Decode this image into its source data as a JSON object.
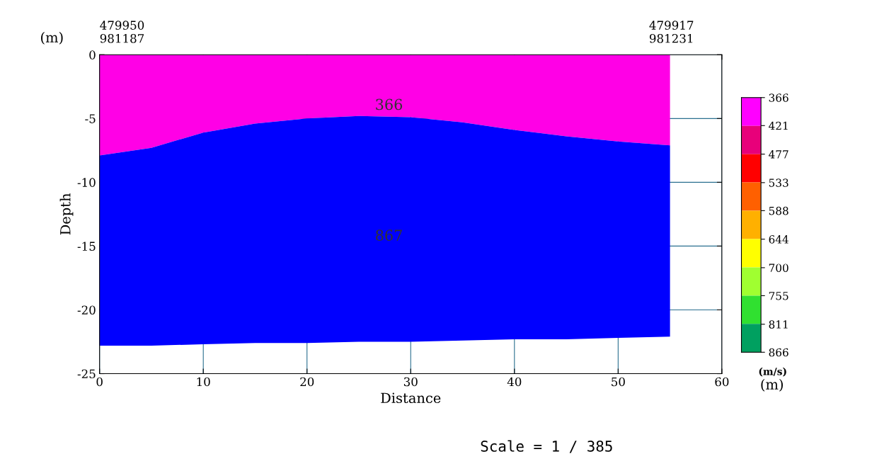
{
  "chart_data": {
    "type": "area",
    "stacked": true,
    "xlabel": "Distance",
    "ylabel": "Depth",
    "clabel": "(m/s)",
    "x": [
      0,
      5,
      10,
      15,
      20,
      25,
      30,
      35,
      40,
      45,
      50,
      55
    ],
    "series": [
      {
        "color": "#ff00e6",
        "values": [
          -7.9,
          -7.3,
          -6.1,
          -5.4,
          -5.0,
          -4.8,
          -4.9,
          -5.3,
          -5.9,
          -6.4,
          -6.8,
          -7.1
        ]
      },
      {
        "color": "#0000ff",
        "values": [
          -14.9,
          -15.5,
          -16.6,
          -17.2,
          -17.6,
          -17.7,
          -17.6,
          -17.1,
          -16.4,
          -15.9,
          -15.4,
          -15.0
        ]
      }
    ],
    "xlim": [
      0,
      60
    ],
    "xticks": [
      0,
      10,
      20,
      30,
      40,
      50,
      60
    ],
    "ylim": [
      -25,
      0
    ],
    "yticks": [
      -25,
      -20,
      -15,
      -10,
      -5,
      0
    ],
    "grid": true,
    "clim": [
      366,
      866
    ],
    "cticks": [
      366,
      421,
      477,
      533,
      588,
      644,
      700,
      755,
      811,
      866
    ],
    "annotations": [
      "366",
      "867",
      "479950\n981187",
      "479917\n981231",
      "(m)",
      "(m)",
      "Scale = 1 / 385"
    ]
  }
}
